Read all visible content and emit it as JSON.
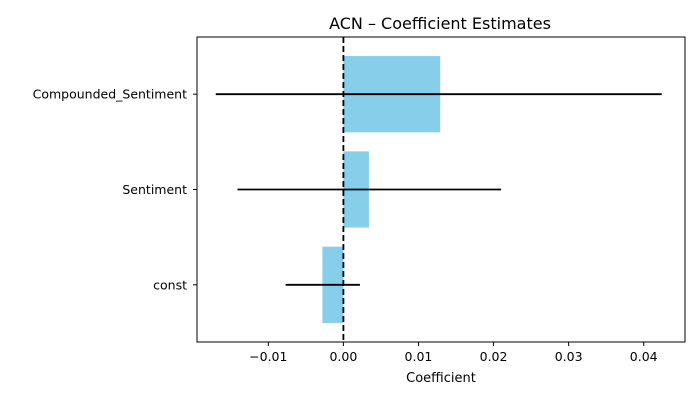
{
  "chart_data": {
    "type": "bar",
    "orientation": "horizontal",
    "title": "ACN – Coefficient Estimates",
    "xlabel": "Coefficient",
    "ylabel": "",
    "categories": [
      "const",
      "Sentiment",
      "Compounded_Sentiment"
    ],
    "values": [
      -0.0028,
      0.0034,
      0.0129
    ],
    "ci_low": [
      -0.0077,
      -0.0141,
      -0.017
    ],
    "ci_high": [
      0.0022,
      0.021,
      0.0424
    ],
    "xlim": [
      -0.0195,
      0.0455
    ],
    "xticks": [
      -0.01,
      0.0,
      0.01,
      0.02,
      0.03,
      0.04
    ],
    "xtick_labels": [
      "−0.01",
      "0.00",
      "0.01",
      "0.02",
      "0.03",
      "0.04"
    ],
    "reference_line": 0,
    "grid": false,
    "colors": {
      "bar": "#87CEEB",
      "errorbar": "#000000",
      "reference_line": "#000000",
      "axis": "#000000"
    }
  }
}
